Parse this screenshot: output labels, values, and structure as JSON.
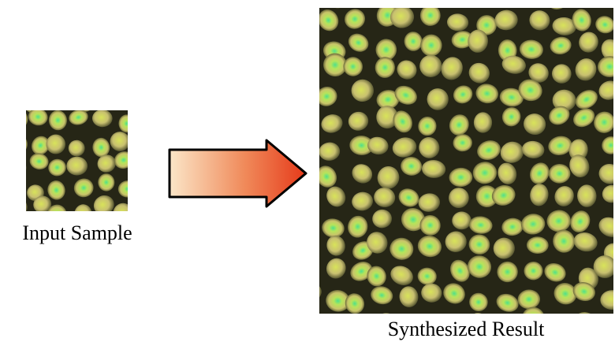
{
  "input": {
    "label": "Input Sample"
  },
  "output": {
    "label": "Synthesized Result"
  }
}
